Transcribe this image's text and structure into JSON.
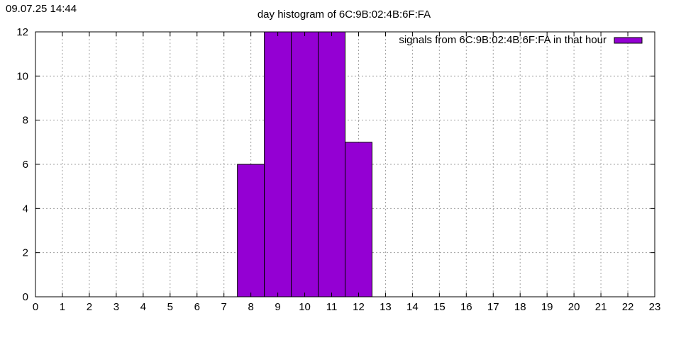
{
  "header": {
    "timestamp": "09.07.25 14:44",
    "title": "day histogram of 6C:9B:02:4B:6F:FA"
  },
  "chart_data": {
    "type": "bar",
    "title": "day histogram of 6C:9B:02:4B:6F:FA",
    "xlabel": "",
    "ylabel": "",
    "x": [
      0,
      1,
      2,
      3,
      4,
      5,
      6,
      7,
      8,
      9,
      10,
      11,
      12,
      13,
      14,
      15,
      16,
      17,
      18,
      19,
      20,
      21,
      22
    ],
    "values": [
      0,
      0,
      0,
      0,
      0,
      0,
      0,
      0,
      6,
      12,
      12,
      12,
      7,
      0,
      0,
      0,
      0,
      0,
      0,
      0,
      0,
      0,
      0
    ],
    "xlim": [
      0,
      23
    ],
    "ylim": [
      0,
      12
    ],
    "x_ticks": [
      0,
      1,
      2,
      3,
      4,
      5,
      6,
      7,
      8,
      9,
      10,
      11,
      12,
      13,
      14,
      15,
      16,
      17,
      18,
      19,
      20,
      21,
      22,
      23
    ],
    "y_ticks": [
      0,
      2,
      4,
      6,
      8,
      10,
      12
    ],
    "grid": true,
    "legend": {
      "label": "signals from 6C:9B:02:4B:6F:FA in that hour",
      "position": "top-right"
    },
    "colors": {
      "bar_fill": "#9400d3",
      "bar_stroke": "#000000",
      "grid": "#a0a0a0"
    }
  }
}
